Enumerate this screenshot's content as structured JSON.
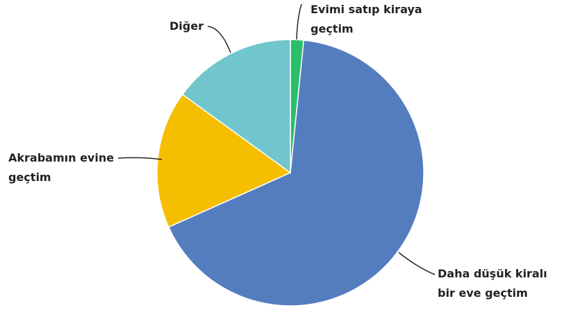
{
  "chart_data": {
    "type": "pie",
    "categories": [
      "Evimi satıp kiraya geçtim",
      "Daha düşük kiralı bir eve geçtim",
      "Akrabamın evine geçtim",
      "Diğer"
    ],
    "values": [
      1.6,
      66.7,
      16.7,
      15
    ],
    "colors": [
      "#2bbf6a",
      "#547dbf",
      "#f5be00",
      "#70c6cc"
    ]
  }
}
